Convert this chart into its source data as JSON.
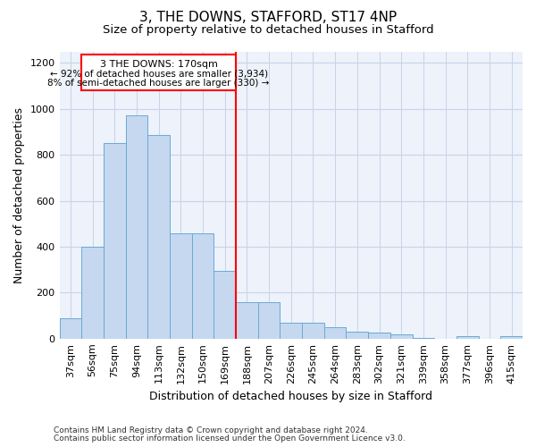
{
  "title": "3, THE DOWNS, STAFFORD, ST17 4NP",
  "subtitle": "Size of property relative to detached houses in Stafford",
  "xlabel": "Distribution of detached houses by size in Stafford",
  "ylabel": "Number of detached properties",
  "categories": [
    "37sqm",
    "56sqm",
    "75sqm",
    "94sqm",
    "113sqm",
    "132sqm",
    "150sqm",
    "169sqm",
    "188sqm",
    "207sqm",
    "226sqm",
    "245sqm",
    "264sqm",
    "283sqm",
    "302sqm",
    "321sqm",
    "339sqm",
    "358sqm",
    "377sqm",
    "396sqm",
    "415sqm"
  ],
  "values": [
    90,
    400,
    850,
    970,
    885,
    460,
    460,
    295,
    160,
    160,
    70,
    70,
    50,
    32,
    25,
    18,
    5,
    0,
    10,
    0,
    12
  ],
  "bar_color": "#c5d8f0",
  "bar_edge_color": "#6aaad4",
  "highlight_index": 7,
  "annotation_line1": "3 THE DOWNS: 170sqm",
  "annotation_line2": "← 92% of detached houses are smaller (3,934)",
  "annotation_line3": "8% of semi-detached houses are larger (330) →",
  "ylim": [
    0,
    1250
  ],
  "yticks": [
    0,
    200,
    400,
    600,
    800,
    1000,
    1200
  ],
  "footer1": "Contains HM Land Registry data © Crown copyright and database right 2024.",
  "footer2": "Contains public sector information licensed under the Open Government Licence v3.0.",
  "bg_color": "#edf2fb",
  "grid_color": "#c8d4e8",
  "title_fontsize": 11,
  "subtitle_fontsize": 9.5,
  "axis_label_fontsize": 9,
  "tick_fontsize": 8,
  "footer_fontsize": 6.5
}
